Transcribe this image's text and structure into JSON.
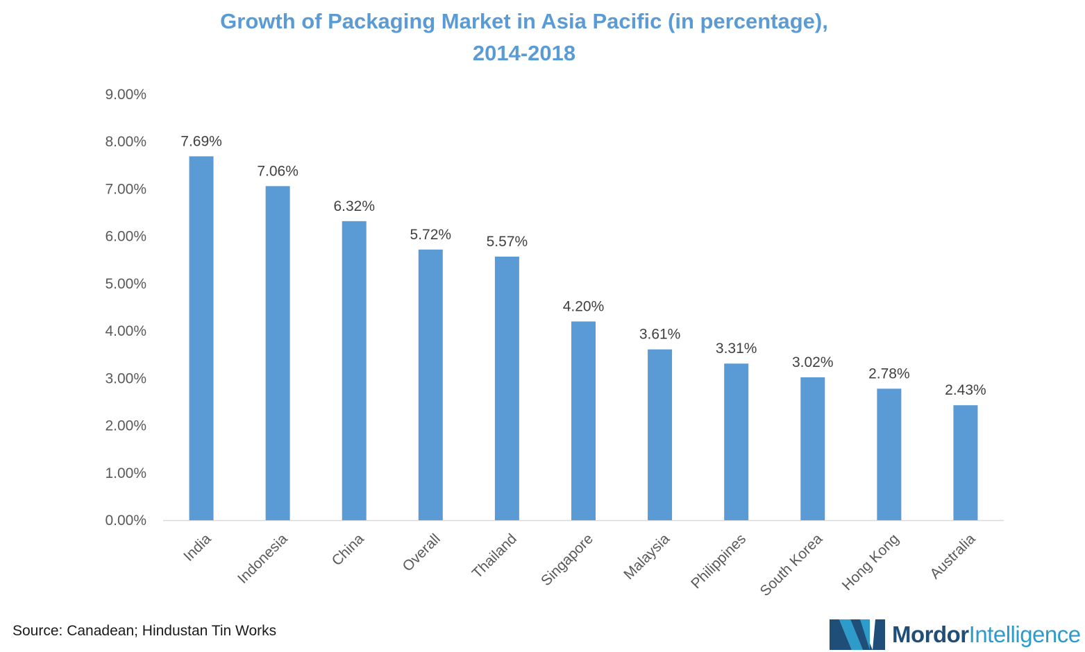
{
  "title_line1": "Growth of Packaging Market in Asia Pacific (in percentage),",
  "title_line2": "2014-2018",
  "source": "Source: Canadean; Hindustan Tin Works",
  "logo": {
    "word1": "Mordor",
    "word2": "Intelligence",
    "icon": "mordor-intelligence-logo-icon"
  },
  "colors": {
    "title": "#5b9bd5",
    "bar": "#5b9bd5",
    "axis_text": "#595959",
    "label_text": "#404040",
    "logo_dark": "#1f4e79",
    "logo_light": "#2e9cca"
  },
  "chart_data": {
    "type": "bar",
    "title": "Growth of Packaging Market in Asia Pacific (in percentage), 2014-2018",
    "categories": [
      "India",
      "Indonesia",
      "China",
      "Overall",
      "Thailand",
      "Singapore",
      "Malaysia",
      "Philippines",
      "South Korea",
      "Hong Kong",
      "Australia"
    ],
    "values": [
      7.69,
      7.06,
      6.32,
      5.72,
      5.57,
      4.2,
      3.61,
      3.31,
      3.02,
      2.78,
      2.43
    ],
    "data_labels": [
      "7.69%",
      "7.06%",
      "6.32%",
      "5.72%",
      "5.57%",
      "4.20%",
      "3.61%",
      "3.31%",
      "3.02%",
      "2.78%",
      "2.43%"
    ],
    "y_ticks": [
      "0.00%",
      "1.00%",
      "2.00%",
      "3.00%",
      "4.00%",
      "5.00%",
      "6.00%",
      "7.00%",
      "8.00%",
      "9.00%"
    ],
    "ylim": [
      0,
      9
    ],
    "xlabel": "",
    "ylabel": "",
    "grid": false,
    "legend": "none"
  }
}
